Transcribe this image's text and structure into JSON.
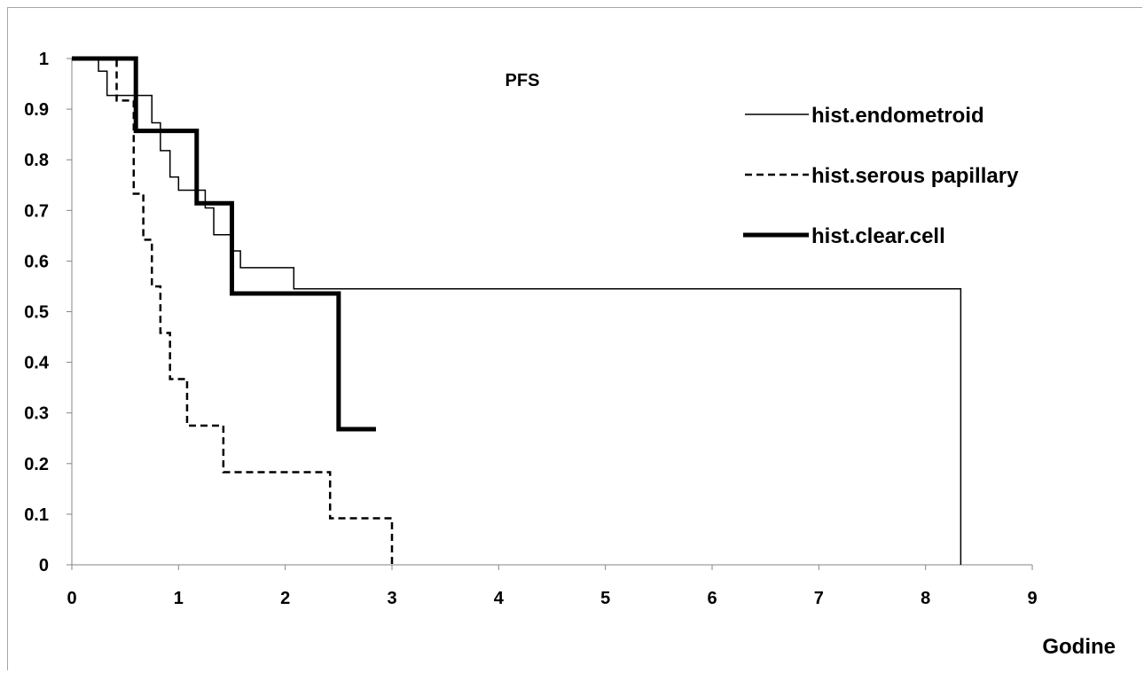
{
  "chart_data": {
    "type": "line",
    "title": "PFS",
    "xlabel": "Godine",
    "ylabel": "",
    "xlim": [
      0,
      9
    ],
    "ylim": [
      0,
      1
    ],
    "x_ticks": [
      "0",
      "1",
      "2",
      "3",
      "4",
      "5",
      "6",
      "7",
      "8",
      "9"
    ],
    "y_ticks": [
      "0",
      "0.1",
      "0.2",
      "0.3",
      "0.4",
      "0.5",
      "0.6",
      "0.7",
      "0.8",
      "0.9",
      "1"
    ],
    "step": true,
    "grid": false,
    "legend_position": "top-right",
    "series": [
      {
        "name": "hist.endometroid",
        "style": "thin-solid",
        "color": "#000000",
        "x": [
          0,
          0.25,
          0.33,
          0.75,
          0.83,
          0.92,
          1.0,
          1.25,
          1.33,
          1.5,
          1.58,
          2.08,
          8.33
        ],
        "y": [
          1,
          0.975,
          0.927,
          0.873,
          0.818,
          0.766,
          0.74,
          0.705,
          0.652,
          0.62,
          0.587,
          0.545,
          0
        ]
      },
      {
        "name": "hist.serous papillary",
        "style": "dashed",
        "color": "#000000",
        "x": [
          0,
          0.42,
          0.58,
          0.67,
          0.75,
          0.83,
          0.92,
          1.08,
          1.42,
          2.42,
          3.0
        ],
        "y": [
          1,
          0.917,
          0.733,
          0.642,
          0.55,
          0.458,
          0.367,
          0.275,
          0.183,
          0.092,
          0
        ]
      },
      {
        "name": "hist.clear.cell",
        "style": "thick-solid",
        "color": "#000000",
        "x": [
          0,
          0.6,
          1.17,
          1.5,
          2.5,
          2.85
        ],
        "y": [
          1,
          0.857,
          0.714,
          0.536,
          0.268,
          0.268
        ]
      }
    ]
  }
}
